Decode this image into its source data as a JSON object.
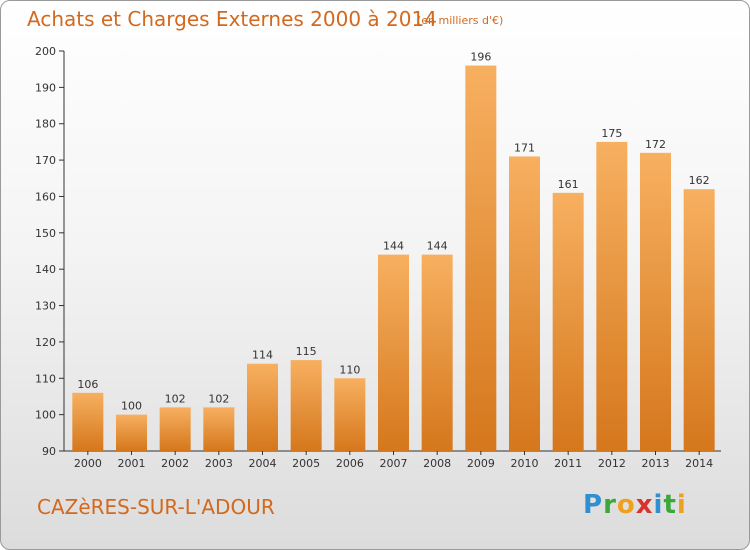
{
  "title": "Achats et Charges Externes 2000 à 2014",
  "subtitle": "(en milliers d'€)",
  "commune": "CAZèRES-SUR-L'ADOUR",
  "logo": {
    "letters": [
      "P",
      "r",
      "o",
      "x",
      "i",
      "t",
      "i"
    ],
    "colors": [
      "#2f8fd0",
      "#3aa83a",
      "#f0a020",
      "#d8342c",
      "#2f8fd0",
      "#3aa83a",
      "#f0a020"
    ]
  },
  "colors": {
    "accent": "#d2691e",
    "bar_light": "#f5aa58",
    "bar_dark": "#d97a1e"
  },
  "chart_data": {
    "type": "bar",
    "categories": [
      "2000",
      "2001",
      "2002",
      "2003",
      "2004",
      "2005",
      "2006",
      "2007",
      "2008",
      "2009",
      "2010",
      "2011",
      "2012",
      "2013",
      "2014"
    ],
    "values": [
      106,
      100,
      102,
      102,
      114,
      115,
      110,
      144,
      144,
      196,
      171,
      161,
      175,
      172,
      162
    ],
    "ylim": [
      90,
      200
    ],
    "yticks": [
      90,
      100,
      110,
      120,
      130,
      140,
      150,
      160,
      170,
      180,
      190,
      200
    ],
    "grid": false,
    "legend": "none"
  }
}
